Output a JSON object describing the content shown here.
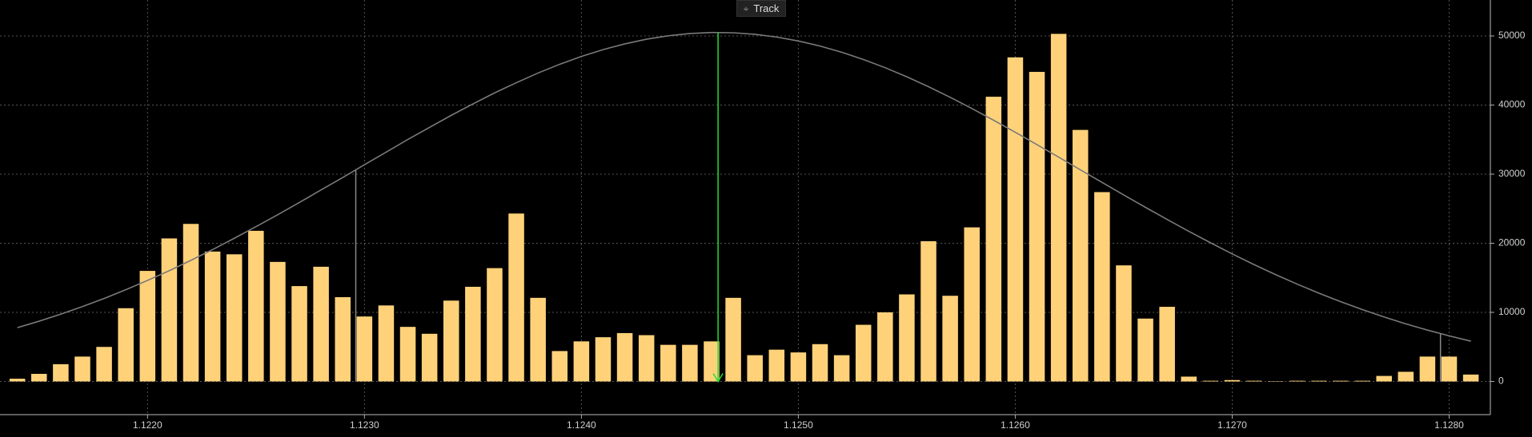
{
  "chart_data": {
    "type": "bar",
    "button": "Track",
    "x": [
      1.1214,
      1.1215,
      1.1216,
      1.1217,
      1.1218,
      1.1219,
      1.122,
      1.1221,
      1.1222,
      1.1223,
      1.1224,
      1.1225,
      1.1226,
      1.1227,
      1.1228,
      1.1229,
      1.123,
      1.1231,
      1.1232,
      1.1233,
      1.1234,
      1.1235,
      1.1236,
      1.1237,
      1.1238,
      1.1239,
      1.124,
      1.1241,
      1.1242,
      1.1243,
      1.1244,
      1.1245,
      1.1246,
      1.1247,
      1.1248,
      1.1249,
      1.125,
      1.1251,
      1.1252,
      1.1253,
      1.1254,
      1.1255,
      1.1256,
      1.1257,
      1.1258,
      1.1259,
      1.126,
      1.1261,
      1.1262,
      1.1263,
      1.1264,
      1.1265,
      1.1266,
      1.1267,
      1.1268,
      1.1269,
      1.127,
      1.1271,
      1.1272,
      1.1273,
      1.1274,
      1.1275,
      1.1276,
      1.1277,
      1.1278,
      1.1279,
      1.128,
      1.1281
    ],
    "series": [
      {
        "color": "#ffd27a",
        "values": [
          400,
          1100,
          2500,
          3600,
          5000,
          10600,
          16000,
          20700,
          22800,
          18800,
          18400,
          21800,
          17300,
          13800,
          16600,
          12200,
          9400,
          11000,
          7900,
          6900,
          11700,
          13700,
          16400,
          24300,
          12100,
          4400,
          5800,
          6400,
          7000,
          6700,
          5300,
          5300,
          5800,
          12100,
          3800,
          4600,
          4200,
          5400,
          3800,
          8200,
          10000,
          12600,
          20300,
          12400,
          22300,
          41200,
          46900,
          44800,
          50300,
          36400,
          27400,
          16800,
          9100,
          10800,
          700,
          100,
          200,
          100,
          50,
          100,
          100,
          100,
          100,
          800,
          1400,
          3600,
          3600,
          1000
        ]
      },
      {
        "type": "line",
        "color": "#7a7a7a",
        "values": [
          7790,
          8720,
          9740,
          10840,
          12010,
          13280,
          14620,
          16020,
          17530,
          19080,
          20720,
          22400,
          24120,
          25900,
          27720,
          29520,
          31370,
          33180,
          35020,
          36770,
          38510,
          40160,
          41760,
          43230,
          44630,
          45900,
          47030,
          48020,
          48850,
          49530,
          50020,
          50350,
          50500,
          50460,
          50240,
          49840,
          49270,
          48540,
          47640,
          46590,
          45410,
          44090,
          42660,
          41120,
          39500,
          37800,
          36060,
          34270,
          32460,
          30630,
          28810,
          26990,
          25200,
          23450,
          21730,
          20070,
          18460,
          16920,
          15460,
          14080,
          12770,
          11550,
          10400,
          9330,
          8340,
          7430,
          6600,
          5830
        ]
      }
    ],
    "markers": [
      {
        "x": 1.12296,
        "value": 30600,
        "color": "#888888"
      },
      {
        "x": 1.12463,
        "value": 50500,
        "color": "#22dd33"
      },
      {
        "x": 1.12796,
        "value": 6900,
        "color": "#888888"
      }
    ],
    "xlim": [
      1.12132,
      1.12819
    ],
    "ylim": [
      -4800,
      55200
    ],
    "xticks": [
      {
        "value": 1.122,
        "label": "1.1220"
      },
      {
        "value": 1.123,
        "label": "1.1230"
      },
      {
        "value": 1.124,
        "label": "1.1240"
      },
      {
        "value": 1.125,
        "label": "1.1250"
      },
      {
        "value": 1.126,
        "label": "1.1260"
      },
      {
        "value": 1.127,
        "label": "1.1270"
      },
      {
        "value": 1.128,
        "label": "1.1280"
      }
    ],
    "yticks": [
      0,
      10000,
      20000,
      30000,
      40000,
      50000
    ],
    "grid": true
  }
}
